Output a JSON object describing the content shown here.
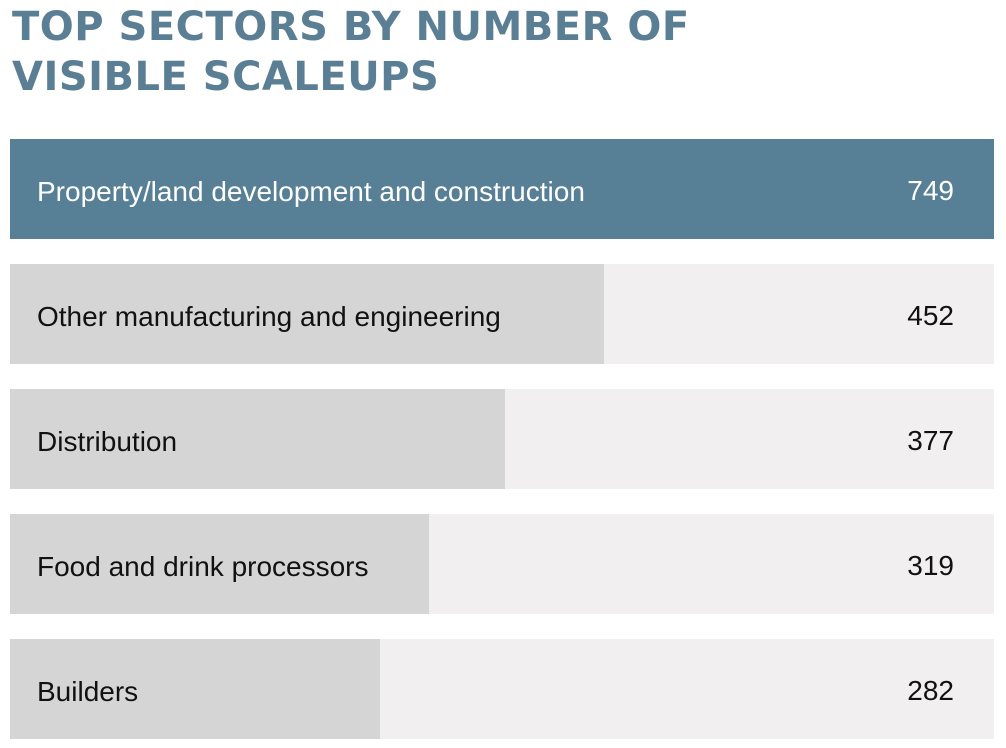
{
  "colors": {
    "title": "#5a7f95",
    "highlight_bar": "#577f96",
    "bar": "#d5d5d5",
    "track": "#f1efef",
    "text_dark": "#111111",
    "text_light": "#ffffff"
  },
  "chart_data": {
    "type": "bar",
    "orientation": "horizontal",
    "title": "TOP SECTORS BY NUMBER OF VISIBLE SCALEUPS",
    "title_lines": [
      "TOP SECTORS BY NUMBER OF",
      "VISIBLE SCALEUPS"
    ],
    "categories": [
      "Property/land development and construction",
      "Other manufacturing and engineering",
      "Distribution",
      "Food and drink processors",
      "Builders"
    ],
    "values": [
      749,
      452,
      377,
      319,
      282
    ],
    "value_labels": [
      "749",
      "452",
      "377",
      "319",
      "282"
    ],
    "xlim": [
      0,
      749
    ],
    "highlighted_index": 0,
    "grid": false,
    "legend": "none"
  }
}
